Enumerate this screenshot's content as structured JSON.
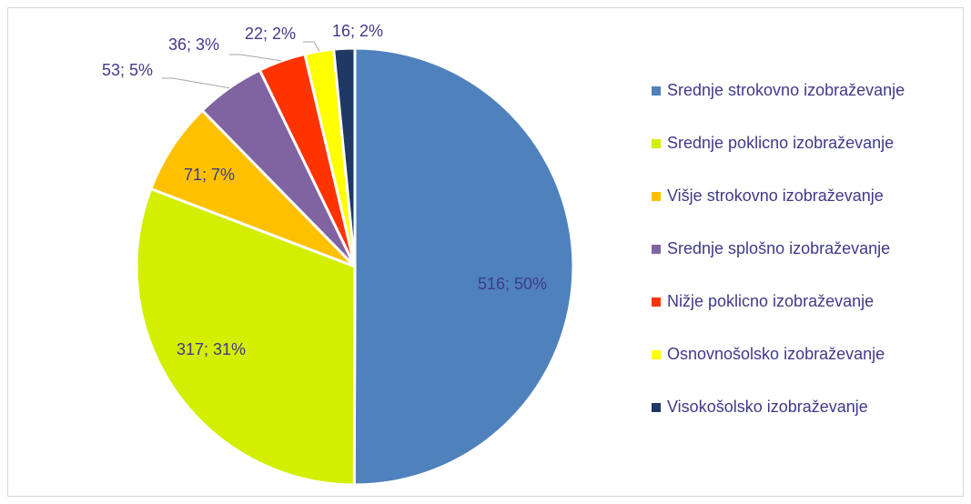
{
  "chart_data": {
    "type": "pie",
    "categories": [
      "Srednje strokovno izobraževanje",
      "Srednje poklicno izobraževanje",
      "Višje strokovno izobraževanje",
      "Srednje splošno izobraževanje",
      "Nižje poklicno izobraževanje",
      "Osnovnošolsko izobraževanje",
      "Visokošolsko izobraževanje"
    ],
    "values": [
      516,
      317,
      71,
      53,
      36,
      22,
      16
    ],
    "value_labels": [
      "516; 50%",
      "317; 31%",
      "71; 7%",
      "53; 5%",
      "36; 3%",
      "22; 2%",
      "16; 2%"
    ],
    "colors": [
      "#4f81bd",
      "#d4ee00",
      "#ffc000",
      "#8064a2",
      "#ff3300",
      "#ffff00",
      "#1f3864"
    ],
    "legend": "right"
  }
}
